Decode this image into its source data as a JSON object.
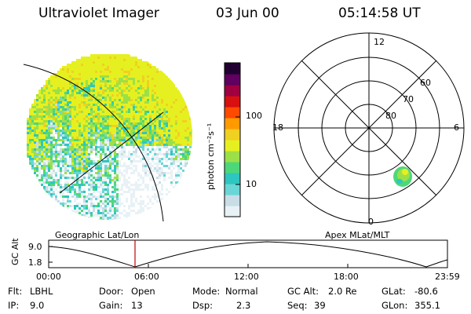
{
  "header": {
    "title": "Ultraviolet Imager",
    "date": "03 Jun 00",
    "time": "05:14:58 UT"
  },
  "colorbar": {
    "label": "photon cm⁻²s⁻¹",
    "ticks": [
      "100",
      "10"
    ]
  },
  "polar_plot": {
    "mlt_labels": [
      "12",
      "18",
      "6",
      "0"
    ],
    "lat_labels": [
      "60",
      "70",
      "80"
    ]
  },
  "map": {
    "left_label": "Geographic Lat/Lon",
    "right_label": "Apex MLat/MLT"
  },
  "altitude_plot": {
    "ylabel": "GC Alt",
    "y_ticks": [
      "9.0",
      "1.8"
    ],
    "x_ticks": [
      "00:00",
      "06:00",
      "12:00",
      "18:00",
      "23:59"
    ],
    "marker_time": "05:15",
    "marker_color": "#c00000"
  },
  "info": {
    "filter_label": "Flt:",
    "filter_value": "LBHL",
    "ip_label": "IP:",
    "ip_value": "9.0",
    "door_label": "Door:",
    "door_value": "Open",
    "gain_label": "Gain:",
    "gain_value": "13",
    "mode_label": "Mode:",
    "mode_value": "Normal",
    "dsp_label": "Dsp:",
    "dsp_value": "2.3",
    "gcalt_label": "GC Alt:",
    "gcalt_value": "2.0 Re",
    "seq_label": "Seq:",
    "seq_value": "39",
    "glat_label": "GLat:",
    "glat_value": "-80.6",
    "glon_label": "GLon:",
    "glon_value": "355.1"
  },
  "colors": {
    "colormap": [
      "#e8f2f6",
      "#c8dde6",
      "#6ad6d6",
      "#2ec6c0",
      "#4cd87a",
      "#9ce048",
      "#e6f020",
      "#f0d020",
      "#ff9a00",
      "#ff4a00",
      "#d81010",
      "#a00040",
      "#600060",
      "#200030"
    ]
  }
}
